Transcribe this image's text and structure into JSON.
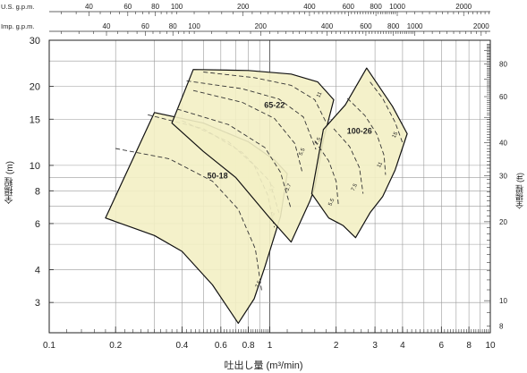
{
  "chart_data": {
    "type": "area",
    "xlabel": "吐出し量 (m³/min)",
    "ylabel_left": "全揚程 (m)",
    "ylabel_right": "全揚程 (ft)",
    "xscale": "log",
    "yscale": "log",
    "xlim": [
      0.1,
      10
    ],
    "ylim": [
      2.3,
      30
    ],
    "x_ticks": [
      {
        "v": 0.1,
        "label": "0.1"
      },
      {
        "v": 0.2,
        "label": "0.2"
      },
      {
        "v": 0.4,
        "label": "0.4"
      },
      {
        "v": 0.6,
        "label": "0.6"
      },
      {
        "v": 0.8,
        "label": "0.8"
      },
      {
        "v": 1,
        "label": "1"
      },
      {
        "v": 2,
        "label": "2"
      },
      {
        "v": 3,
        "label": "3"
      },
      {
        "v": 4,
        "label": "4"
      },
      {
        "v": 6,
        "label": "6"
      },
      {
        "v": 8,
        "label": "8"
      },
      {
        "v": 10,
        "label": "10"
      }
    ],
    "y_ticks": [
      {
        "v": 30,
        "label": "30"
      },
      {
        "v": 20,
        "label": "20"
      },
      {
        "v": 15,
        "label": "15"
      },
      {
        "v": 10,
        "label": "10"
      },
      {
        "v": 8,
        "label": "8"
      },
      {
        "v": 6,
        "label": "6"
      },
      {
        "v": 4,
        "label": "4"
      },
      {
        "v": 3,
        "label": "3"
      }
    ],
    "ft_ticks": [
      {
        "v": 80,
        "label": "80"
      },
      {
        "v": 60,
        "label": "60"
      },
      {
        "v": 40,
        "label": "40"
      },
      {
        "v": 30,
        "label": "30"
      },
      {
        "v": 20,
        "label": "20"
      },
      {
        "v": 10,
        "label": "10"
      },
      {
        "v": 8,
        "label": "8"
      }
    ],
    "usgpm_title": "U.S. g.p.m.",
    "usgpm_ticks": [
      {
        "v": 40,
        "label": "40"
      },
      {
        "v": 60,
        "label": "60"
      },
      {
        "v": 80,
        "label": "80"
      },
      {
        "v": 100,
        "label": "100"
      },
      {
        "v": 200,
        "label": "200"
      },
      {
        "v": 400,
        "label": "400"
      },
      {
        "v": 600,
        "label": "600"
      },
      {
        "v": 800,
        "label": "800"
      },
      {
        "v": 1000,
        "label": "1000"
      },
      {
        "v": 2000,
        "label": "2000"
      }
    ],
    "impgpm_title": "Imp. g.p.m.",
    "impgpm_ticks": [
      {
        "v": 40,
        "label": "40"
      },
      {
        "v": 60,
        "label": "60"
      },
      {
        "v": 80,
        "label": "80"
      },
      {
        "v": 100,
        "label": "100"
      },
      {
        "v": 200,
        "label": "200"
      },
      {
        "v": 400,
        "label": "400"
      },
      {
        "v": 600,
        "label": "600"
      },
      {
        "v": 800,
        "label": "800"
      },
      {
        "v": 1000,
        "label": "1000"
      },
      {
        "v": 2000,
        "label": "2000"
      }
    ],
    "fill_color": "#f3efc4",
    "edge_color": "#111111",
    "regions": [
      {
        "name": "50-18",
        "label_pos": [
          0.58,
          8.9
        ],
        "outline": [
          [
            0.18,
            6.3
          ],
          [
            0.3,
            15.9
          ],
          [
            0.5,
            14.5
          ],
          [
            0.8,
            12.3
          ],
          [
            1.05,
            10.5
          ],
          [
            1.2,
            9.3
          ],
          [
            1.12,
            6.4
          ],
          [
            0.95,
            4.1
          ],
          [
            0.85,
            3.1
          ],
          [
            0.72,
            2.5
          ],
          [
            0.55,
            3.5
          ],
          [
            0.4,
            4.7
          ],
          [
            0.3,
            5.4
          ],
          [
            0.18,
            6.3
          ]
        ],
        "curves": [
          {
            "label": "7.5",
            "label_at": [
              0.9,
              3.5
            ],
            "points": [
              [
                0.2,
                11.6
              ],
              [
                0.35,
                10.6
              ],
              [
                0.55,
                8.7
              ],
              [
                0.72,
                6.8
              ],
              [
                0.86,
                4.8
              ],
              [
                0.92,
                3.3
              ]
            ]
          },
          {
            "label": "3.7",
            "label_at": [
              1.04,
              8.1
            ],
            "points": [
              [
                0.28,
                15.6
              ],
              [
                0.5,
                13.8
              ],
              [
                0.75,
                11.2
              ],
              [
                1.0,
                8.7
              ],
              [
                1.1,
                6.6
              ]
            ]
          },
          {
            "label": "2.2",
            "label_at": [
              1.04,
              6.4
            ],
            "points": [
              [
                0.4,
                14.8
              ],
              [
                0.65,
                12.3
              ],
              [
                0.85,
                10.0
              ],
              [
                0.98,
                7.7
              ],
              [
                1.05,
                5.8
              ]
            ]
          }
        ]
      },
      {
        "name": "65-22",
        "label_pos": [
          1.05,
          16.6
        ],
        "outline": [
          [
            0.45,
            23.2
          ],
          [
            0.8,
            23.0
          ],
          [
            1.25,
            22.3
          ],
          [
            1.65,
            20.8
          ],
          [
            1.95,
            17.8
          ],
          [
            1.75,
            12.5
          ],
          [
            1.6,
            8.2
          ],
          [
            1.52,
            7.3
          ],
          [
            1.25,
            5.1
          ],
          [
            1.0,
            6.3
          ],
          [
            0.7,
            9.0
          ],
          [
            0.5,
            11.3
          ],
          [
            0.36,
            14.5
          ],
          [
            0.45,
            23.2
          ]
        ],
        "curves": [
          {
            "label": "11",
            "label_at": [
              1.7,
              18.5
            ],
            "points": [
              [
                0.5,
                22.7
              ],
              [
                0.85,
                21.6
              ],
              [
                1.25,
                20.2
              ],
              [
                1.6,
                17.8
              ],
              [
                1.8,
                14.6
              ]
            ]
          },
          {
            "label": "7.5",
            "label_at": [
              1.68,
              12.3
            ],
            "points": [
              [
                0.42,
                21.0
              ],
              [
                0.75,
                19.6
              ],
              [
                1.1,
                17.9
              ],
              [
                1.42,
                15.3
              ],
              [
                1.62,
                11.5
              ]
            ]
          },
          {
            "label": "5.5",
            "label_at": [
              1.42,
              11.2
            ],
            "points": [
              [
                0.45,
                19.3
              ],
              [
                0.75,
                17.4
              ],
              [
                1.05,
                15.1
              ],
              [
                1.3,
                12.1
              ],
              [
                1.4,
                9.5
              ]
            ]
          },
          {
            "label": "3.7",
            "label_at": [
              1.23,
              8.2
            ],
            "points": [
              [
                0.38,
                16.4
              ],
              [
                0.65,
                14.3
              ],
              [
                0.95,
                11.7
              ],
              [
                1.12,
                9.4
              ],
              [
                1.25,
                6.8
              ]
            ]
          }
        ]
      },
      {
        "name": "100-26",
        "label_pos": [
          2.55,
          13.2
        ],
        "outline": [
          [
            1.75,
            13.7
          ],
          [
            2.2,
            17.0
          ],
          [
            2.75,
            23.5
          ],
          [
            3.6,
            16.8
          ],
          [
            4.2,
            13.2
          ],
          [
            3.7,
            9.6
          ],
          [
            3.25,
            7.6
          ],
          [
            2.85,
            6.6
          ],
          [
            2.45,
            5.3
          ],
          [
            2.15,
            5.9
          ],
          [
            1.85,
            6.3
          ],
          [
            1.55,
            7.8
          ],
          [
            1.75,
            13.7
          ]
        ],
        "curves": [
          {
            "label": "15",
            "label_at": [
              3.75,
              13.0
            ],
            "points": [
              [
                2.85,
                20.8
              ],
              [
                3.25,
                18.0
              ],
              [
                3.7,
                14.6
              ],
              [
                4.0,
                12.2
              ]
            ]
          },
          {
            "label": "11",
            "label_at": [
              3.2,
              10.0
            ],
            "points": [
              [
                2.25,
                18.0
              ],
              [
                2.7,
                15.5
              ],
              [
                3.05,
                13.2
              ],
              [
                3.3,
                10.9
              ],
              [
                3.35,
                9.2
              ]
            ]
          },
          {
            "label": "7.5",
            "label_at": [
              2.45,
              8.2
            ],
            "points": [
              [
                1.95,
                13.8
              ],
              [
                2.3,
                11.8
              ],
              [
                2.55,
                9.8
              ],
              [
                2.65,
                7.8
              ]
            ]
          },
          {
            "label": "5.5",
            "label_at": [
              1.93,
              7.2
            ],
            "points": [
              [
                1.6,
                12.4
              ],
              [
                1.85,
                10.4
              ],
              [
                2.0,
                8.7
              ],
              [
                2.05,
                7.0
              ]
            ]
          }
        ]
      }
    ]
  }
}
